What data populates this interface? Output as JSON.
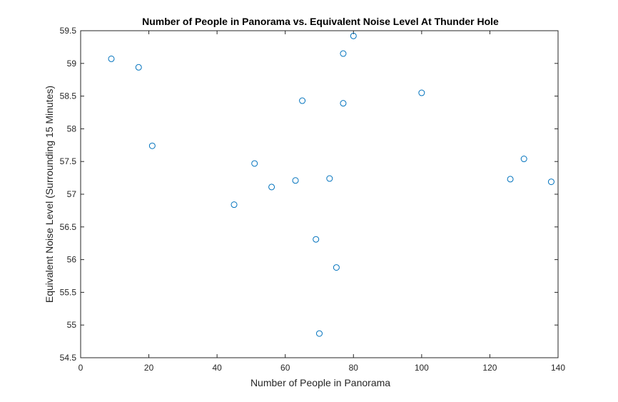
{
  "chart_data": {
    "type": "scatter",
    "title": "Number of People in Panorama vs. Equivalent Noise Level At Thunder Hole",
    "xlabel": "Number of People in Panorama",
    "ylabel": "Equivalent Noise Level (Surrounding 15 Minutes)",
    "xlim": [
      0,
      140
    ],
    "ylim": [
      54.5,
      59.5
    ],
    "xticks": [
      0,
      20,
      40,
      60,
      80,
      100,
      120,
      140
    ],
    "yticks": [
      54.5,
      55,
      55.5,
      56,
      56.5,
      57,
      57.5,
      58,
      58.5,
      59,
      59.5
    ],
    "xtick_labels": [
      "0",
      "20",
      "40",
      "60",
      "80",
      "100",
      "120",
      "140"
    ],
    "ytick_labels": [
      "54.5",
      "55",
      "55.5",
      "56",
      "56.5",
      "57",
      "57.5",
      "58",
      "58.5",
      "59",
      "59.5"
    ],
    "grid": false,
    "marker": "open-circle",
    "marker_color": "#0072BD",
    "axis_color": "#262626",
    "points": [
      {
        "x": 9,
        "y": 59.07
      },
      {
        "x": 17,
        "y": 58.94
      },
      {
        "x": 21,
        "y": 57.74
      },
      {
        "x": 45,
        "y": 56.84
      },
      {
        "x": 51,
        "y": 57.47
      },
      {
        "x": 56,
        "y": 57.11
      },
      {
        "x": 63,
        "y": 57.21
      },
      {
        "x": 65,
        "y": 58.43
      },
      {
        "x": 69,
        "y": 56.31
      },
      {
        "x": 70,
        "y": 54.87
      },
      {
        "x": 73,
        "y": 57.24
      },
      {
        "x": 75,
        "y": 55.88
      },
      {
        "x": 77,
        "y": 59.15
      },
      {
        "x": 77,
        "y": 58.39
      },
      {
        "x": 80,
        "y": 59.42
      },
      {
        "x": 100,
        "y": 58.55
      },
      {
        "x": 126,
        "y": 57.23
      },
      {
        "x": 130,
        "y": 57.54
      },
      {
        "x": 138,
        "y": 57.19
      }
    ]
  }
}
